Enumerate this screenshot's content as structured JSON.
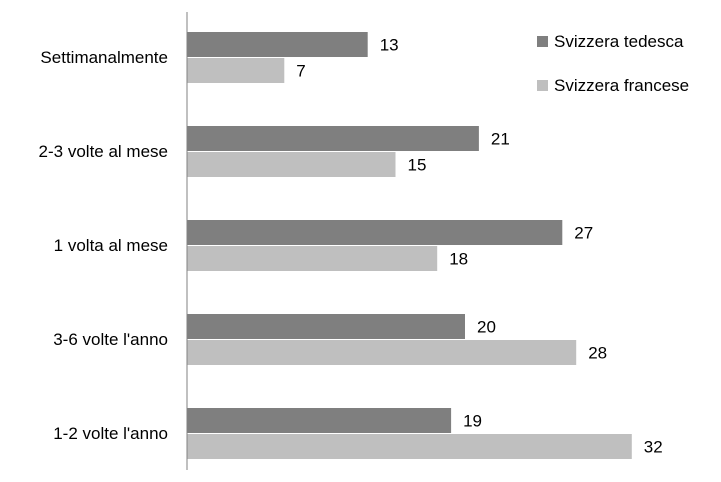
{
  "chart_data": {
    "type": "bar",
    "orientation": "horizontal",
    "categories": [
      "Settimanalmente",
      "2-3 volte al mese",
      "1 volta al mese",
      "3-6 volte l'anno",
      "1-2 volte l'anno"
    ],
    "series": [
      {
        "name": "Svizzera tedesca",
        "color": "#7f7f7f",
        "values": [
          13,
          21,
          27,
          20,
          19
        ]
      },
      {
        "name": "Svizzera francese",
        "color": "#bfbfbf",
        "values": [
          7,
          15,
          18,
          28,
          32
        ]
      }
    ],
    "data_labels": true,
    "grid": false,
    "legend_position": "top-right",
    "xlim": [
      0,
      35
    ]
  }
}
